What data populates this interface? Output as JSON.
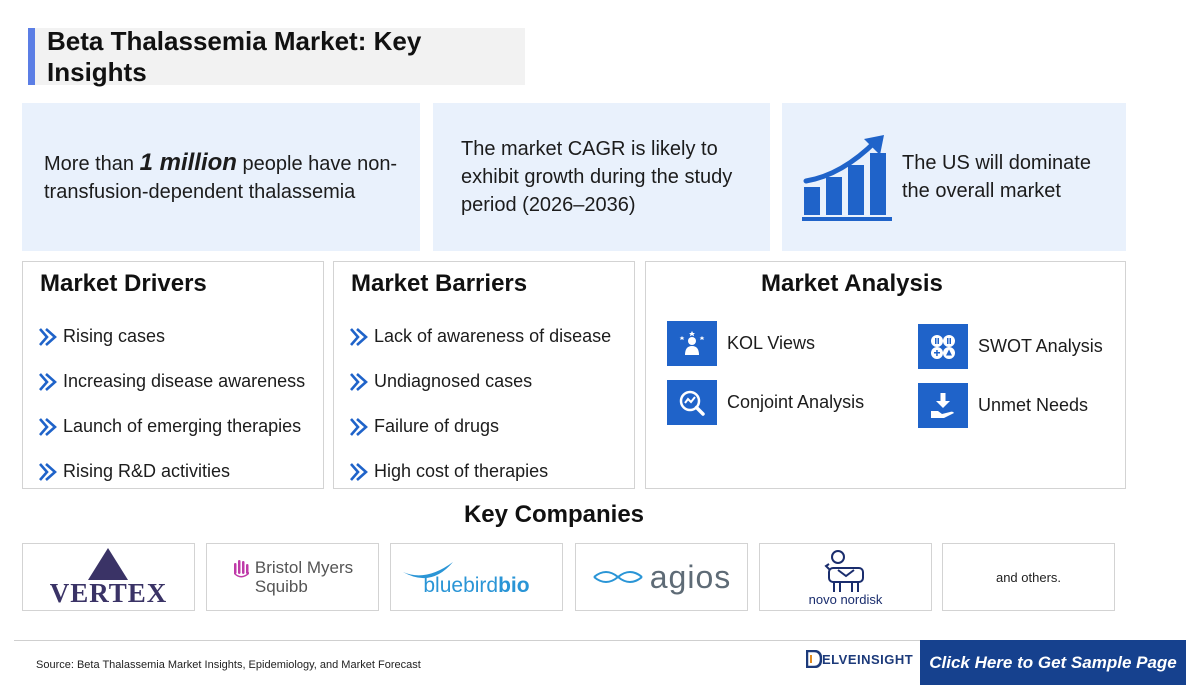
{
  "title": "Beta Thalassemia Market: Key Insights",
  "insights": {
    "one_prefix": "More than ",
    "one_highlight": "1 million",
    "one_suffix": " people have non-transfusion-dependent thalassemia",
    "two": "The market CAGR is likely to exhibit growth during the study period (2026–2036)",
    "three": "The US will dominate the overall market"
  },
  "drivers": {
    "heading": "Market Drivers",
    "items": [
      "Rising cases",
      "Increasing disease awareness",
      "Launch of emerging therapies",
      "Rising R&D activities"
    ]
  },
  "barriers": {
    "heading": "Market Barriers",
    "items": [
      "Lack of awareness of disease",
      "Undiagnosed cases",
      "Failure of drugs",
      "High cost of therapies"
    ]
  },
  "analysis": {
    "heading": "Market Analysis",
    "items": [
      {
        "label": "KOL Views",
        "icon": "kol-icon"
      },
      {
        "label": "SWOT Analysis",
        "icon": "swot-icon"
      },
      {
        "label": "Conjoint Analysis",
        "icon": "conjoint-icon"
      },
      {
        "label": "Unmet Needs",
        "icon": "unmet-needs-icon"
      }
    ]
  },
  "companies": {
    "heading": "Key Companies",
    "vertex": "VERTEX",
    "bms_line1": "Bristol Myers",
    "bms_line2": "Squibb",
    "bluebird_light": "bluebird",
    "bluebird_bold": "bio",
    "agios": "agios",
    "novo": "novo nordisk",
    "others": "and others."
  },
  "footer": {
    "source": "Source: Beta Thalassemia Market Insights, Epidemiology, and Market Forecast",
    "brand": "ELVEINSIGHT",
    "cta": "Click Here to Get Sample Page"
  },
  "colors": {
    "accent": "#1f63c9",
    "title_border": "#5b7ee5",
    "insight_bg": "#e9f1fc",
    "cta_bg": "#16418e"
  }
}
